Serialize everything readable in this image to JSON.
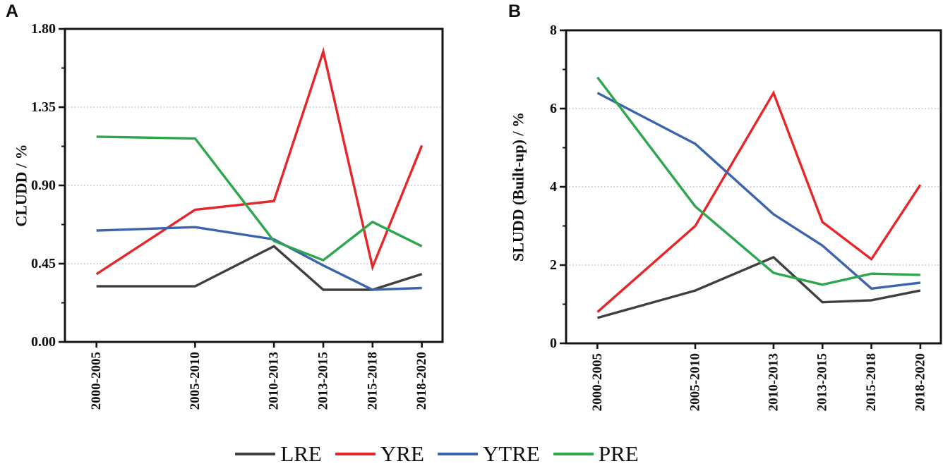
{
  "figure": {
    "background": "#ffffff",
    "panel_labels": [
      "A",
      "B"
    ]
  },
  "legend": {
    "items": [
      {
        "label": "LRE",
        "color": "#3f3f3f"
      },
      {
        "label": "YRE",
        "color": "#e62629"
      },
      {
        "label": "YTRE",
        "color": "#3b64ad"
      },
      {
        "label": "PRE",
        "color": "#2ea64d"
      }
    ]
  },
  "chart_data": [
    {
      "panel": "A",
      "type": "line",
      "title": "",
      "xlabel": "",
      "ylabel": "CLUDD / %",
      "categories": [
        "2000-2005",
        "2005-2010",
        "2010-2013",
        "2013-2015",
        "2015-2018",
        "2018-2020"
      ],
      "category_mid_years": [
        2002.5,
        2007.5,
        2011.5,
        2014,
        2016.5,
        2019
      ],
      "x_domain": [
        2000.9,
        2020.05
      ],
      "ylim": [
        0,
        1.8
      ],
      "ytick_step": 0.45,
      "yminor_step": 0.225,
      "ytick_labels": [
        "0.00",
        "0.45",
        "0.90",
        "1.35",
        "1.80"
      ],
      "grid": "dotted horizontal lines at major y ticks",
      "legend_position": "bottom shared",
      "series": [
        {
          "name": "LRE",
          "color": "#3f3f3f",
          "values": [
            0.32,
            0.32,
            0.55,
            0.3,
            0.3,
            0.39
          ]
        },
        {
          "name": "YRE",
          "color": "#e62629",
          "values": [
            0.39,
            0.76,
            0.81,
            1.67,
            0.43,
            1.13
          ]
        },
        {
          "name": "YTRE",
          "color": "#3b64ad",
          "values": [
            0.64,
            0.66,
            0.59,
            0.44,
            0.3,
            0.31
          ]
        },
        {
          "name": "PRE",
          "color": "#2ea64d",
          "values": [
            1.18,
            1.17,
            0.58,
            0.47,
            0.69,
            0.55
          ]
        }
      ]
    },
    {
      "panel": "B",
      "type": "line",
      "title": "",
      "xlabel": "",
      "ylabel": "SLUDD (Built-up) / %",
      "categories": [
        "2000-2005",
        "2005-2010",
        "2010-2013",
        "2013-2015",
        "2015-2018",
        "2018-2020"
      ],
      "category_mid_years": [
        2002.5,
        2007.5,
        2011.5,
        2014,
        2016.5,
        2019
      ],
      "x_domain": [
        2000.9,
        2020.05
      ],
      "ylim": [
        0,
        8
      ],
      "ytick_step": 2,
      "yminor_step": 1,
      "ytick_labels": [
        "0",
        "2",
        "4",
        "6",
        "8"
      ],
      "grid": "dotted horizontal lines at major y ticks",
      "legend_position": "bottom shared",
      "series": [
        {
          "name": "LRE",
          "color": "#3f3f3f",
          "values": [
            0.65,
            1.35,
            2.2,
            1.05,
            1.1,
            1.35
          ]
        },
        {
          "name": "YRE",
          "color": "#e62629",
          "values": [
            0.8,
            3.0,
            6.4,
            3.1,
            2.15,
            4.05
          ]
        },
        {
          "name": "YTRE",
          "color": "#3b64ad",
          "values": [
            6.4,
            5.1,
            3.3,
            2.5,
            1.4,
            1.55
          ]
        },
        {
          "name": "PRE",
          "color": "#2ea64d",
          "values": [
            6.8,
            3.5,
            1.8,
            1.5,
            1.78,
            1.75
          ]
        }
      ]
    }
  ]
}
